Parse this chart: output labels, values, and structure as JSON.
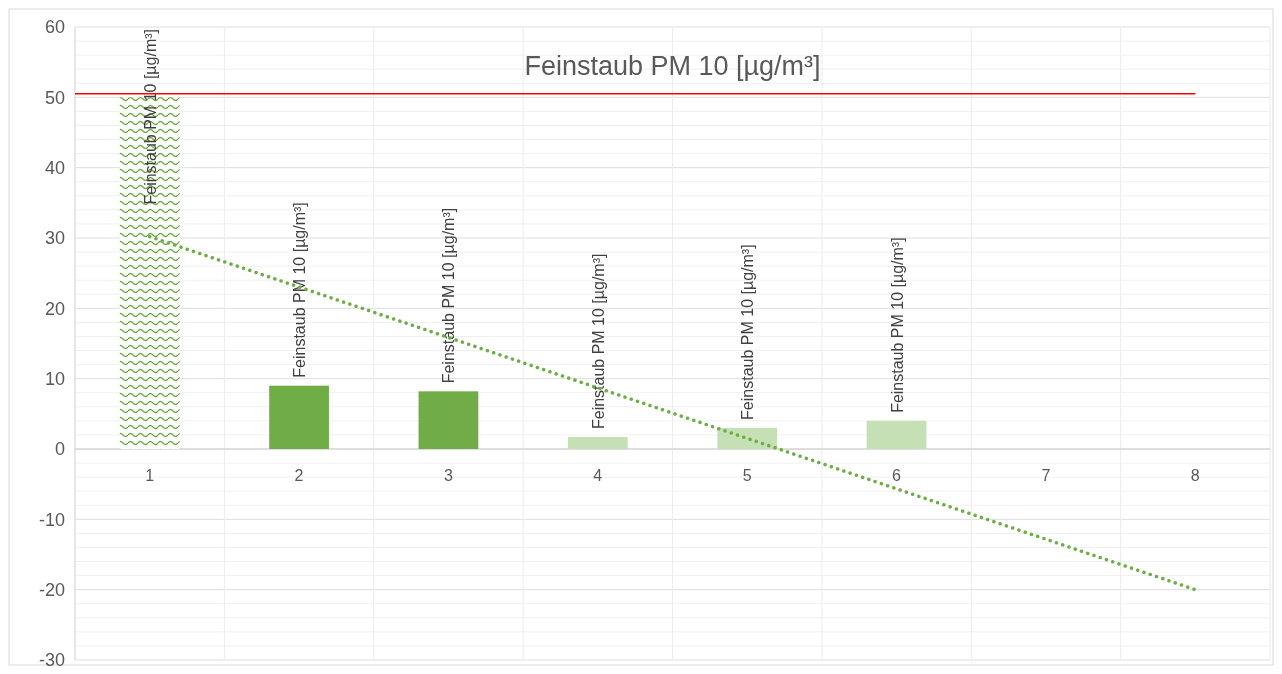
{
  "chart_data": {
    "type": "bar",
    "title": "Feinstaub PM 10 [µg/m³]",
    "categories": [
      "1",
      "2",
      "3",
      "4",
      "5",
      "6",
      "7",
      "8"
    ],
    "series": [
      {
        "values": [
          50,
          9,
          8.2,
          1.7,
          3,
          4,
          null,
          null
        ],
        "colors": [
          "#70ad47",
          "#70ad47",
          "#70ad47",
          "#c5e0b4",
          "#c5e0b4",
          "#c5e0b4",
          "#c5e0b4",
          "#c5e0b4"
        ],
        "value_labels": [
          "Feinstaub PM 10 [µg/m³]",
          "Feinstaub PM 10 [µg/m³]",
          "Feinstaub PM 10 [µg/m³]",
          "Feinstaub PM 10 [µg/m³]",
          "Feinstaub PM 10 [µg/m³]",
          "Feinstaub PM 10 [µg/m³]",
          null,
          null
        ]
      },
      {
        "type": "line",
        "x": [
          "1",
          "8"
        ],
        "values": [
          30.2,
          -20
        ],
        "color": "#70ad47",
        "line_style": "dotted"
      }
    ],
    "ylim": [
      -30,
      60
    ],
    "yticks": [
      -30,
      -20,
      -10,
      0,
      10,
      20,
      30,
      40,
      50,
      60
    ],
    "ref_lines": [
      {
        "axis": "y",
        "value": 50.5,
        "color": "#ff0000"
      }
    ],
    "grid": true
  }
}
